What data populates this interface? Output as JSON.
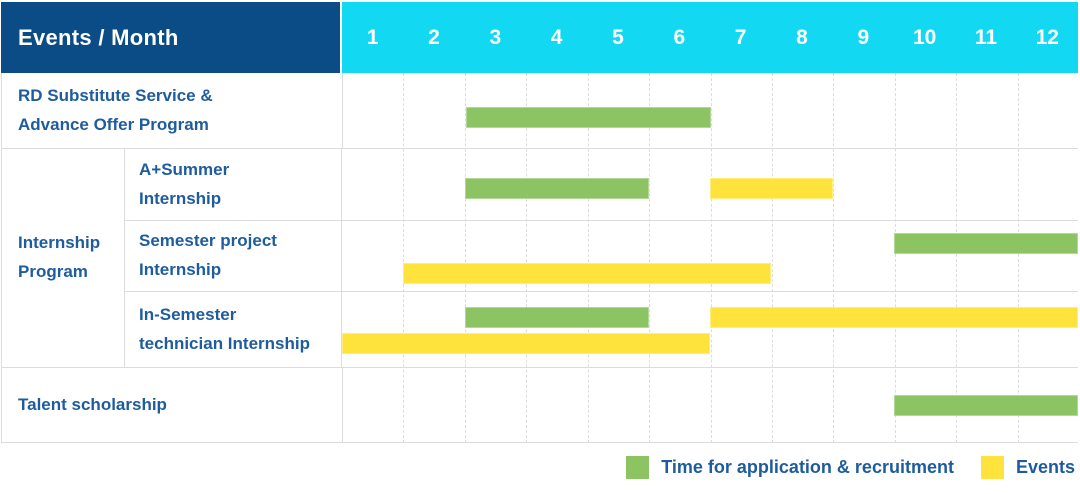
{
  "colors": {
    "navy": "#0b4c86",
    "cyan": "#13d8f1",
    "green": "#8cc463",
    "yellow": "#ffe33d",
    "text_blue": "#1e5c9e",
    "grid": "#dcdcdc"
  },
  "table": {
    "corner_label": "Events / Month",
    "months": [
      "1",
      "2",
      "3",
      "4",
      "5",
      "6",
      "7",
      "8",
      "9",
      "10",
      "11",
      "12"
    ],
    "group_label": "Internship\nProgram",
    "rows": [
      {
        "label": "RD Substitute Service &\nAdvance Offer Program"
      },
      {
        "label": "A+Summer\nInternship"
      },
      {
        "label": "Semester project\nInternship"
      },
      {
        "label": "In-Semester\ntechnician Internship"
      },
      {
        "label": "Talent scholarship"
      }
    ]
  },
  "legend": {
    "items": [
      {
        "label": "Time for application & recruitment",
        "color_key": "green"
      },
      {
        "label": "Events",
        "color_key": "yellow"
      }
    ]
  },
  "chart_data": {
    "type": "bar",
    "subtype": "gantt",
    "title": "Events / Month",
    "x_axis": {
      "label": "Month",
      "ticks": [
        1,
        2,
        3,
        4,
        5,
        6,
        7,
        8,
        9,
        10,
        11,
        12
      ],
      "range": [
        1,
        12
      ]
    },
    "series_names": [
      "Time for application & recruitment",
      "Events"
    ],
    "rows": [
      {
        "label": "RD Substitute Service & Advance Offer Program",
        "group": null,
        "bars": [
          {
            "series": "Time for application & recruitment",
            "start_month": 3,
            "end_month": 6
          }
        ]
      },
      {
        "label": "A+Summer Internship",
        "group": "Internship Program",
        "bars": [
          {
            "series": "Time for application & recruitment",
            "start_month": 3,
            "end_month": 5
          },
          {
            "series": "Events",
            "start_month": 7,
            "end_month": 8
          }
        ]
      },
      {
        "label": "Semester project Internship",
        "group": "Internship Program",
        "bars": [
          {
            "series": "Time for application & recruitment",
            "start_month": 10,
            "end_month": 12
          },
          {
            "series": "Events",
            "start_month": 2,
            "end_month": 7
          }
        ]
      },
      {
        "label": "In-Semester technician Internship",
        "group": "Internship Program",
        "bars": [
          {
            "series": "Time for application & recruitment",
            "start_month": 3,
            "end_month": 5
          },
          {
            "series": "Events",
            "start_month": 7,
            "end_month": 12
          },
          {
            "series": "Events",
            "start_month": 1,
            "end_month": 6
          }
        ]
      },
      {
        "label": "Talent scholarship",
        "group": null,
        "bars": [
          {
            "series": "Time for application & recruitment",
            "start_month": 10,
            "end_month": 12
          }
        ]
      }
    ]
  }
}
